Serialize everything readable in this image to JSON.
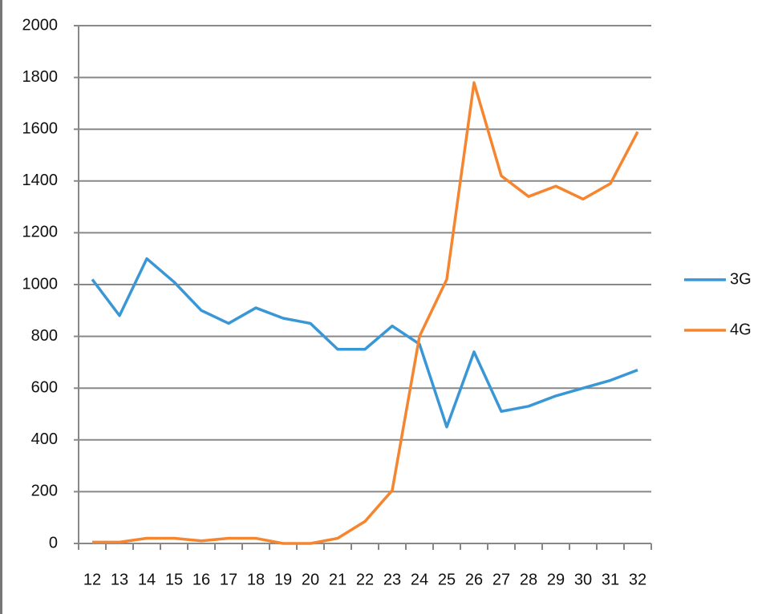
{
  "chart_data": {
    "type": "line",
    "categories": [
      "12",
      "13",
      "14",
      "15",
      "16",
      "17",
      "18",
      "19",
      "20",
      "21",
      "22",
      "23",
      "24",
      "25",
      "26",
      "27",
      "28",
      "29",
      "30",
      "31",
      "32"
    ],
    "series": [
      {
        "name": "3G",
        "color": "#3a97d6",
        "values": [
          1020,
          880,
          1100,
          1010,
          900,
          850,
          910,
          870,
          850,
          750,
          750,
          840,
          770,
          450,
          740,
          510,
          530,
          570,
          600,
          630,
          670
        ]
      },
      {
        "name": "4G",
        "color": "#f5852e",
        "values": [
          5,
          5,
          20,
          20,
          10,
          20,
          20,
          0,
          0,
          20,
          85,
          205,
          800,
          1020,
          1780,
          1420,
          1340,
          1380,
          1330,
          1390,
          1590
        ]
      }
    ],
    "ylim": [
      0,
      2000
    ],
    "yticks": [
      0,
      200,
      400,
      600,
      800,
      1000,
      1200,
      1400,
      1600,
      1800,
      2000
    ],
    "grid": true,
    "legend": "right"
  }
}
